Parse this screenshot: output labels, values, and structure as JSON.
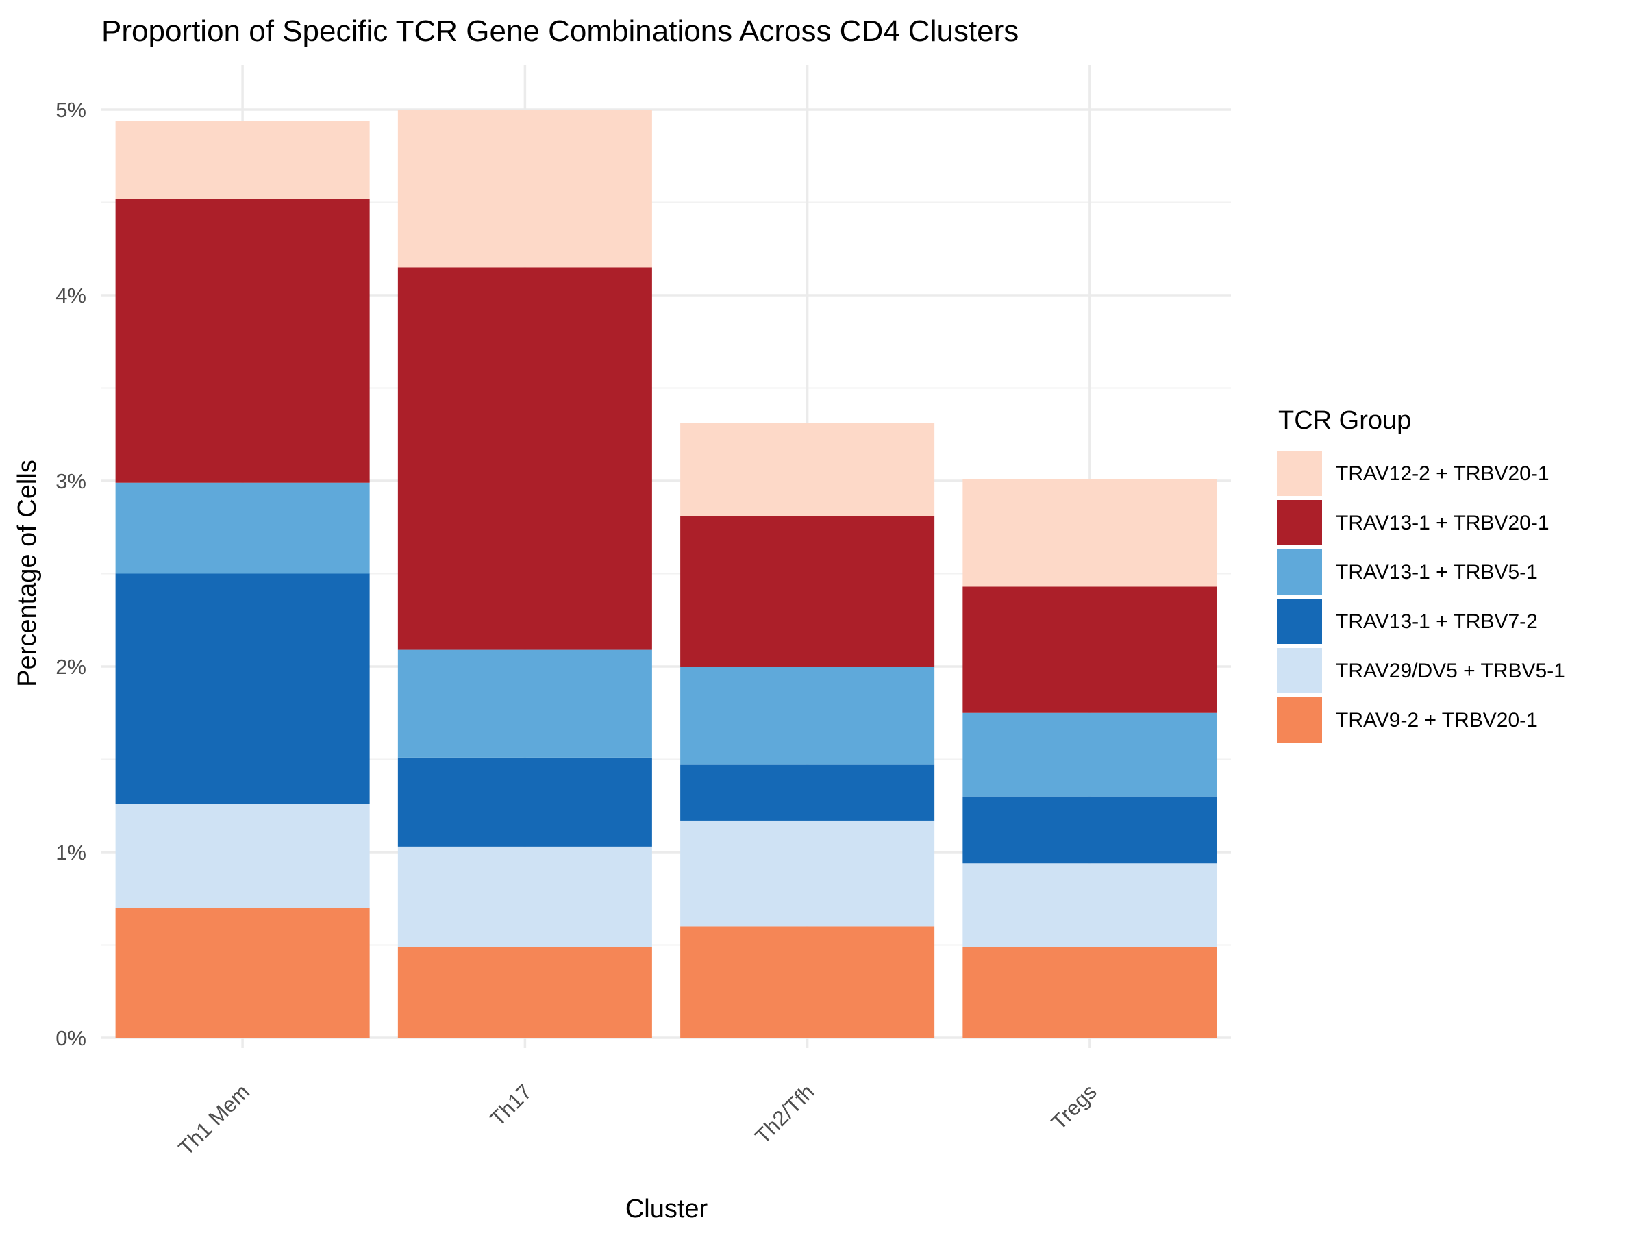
{
  "chart_data": {
    "type": "bar",
    "stacked": true,
    "title": "Proportion of Specific TCR Gene Combinations Across CD4 Clusters",
    "xlabel": "Cluster",
    "ylabel": "Percentage of Cells",
    "categories": [
      "Th1 Mem",
      "Th17",
      "Th2/Tfh",
      "Tregs"
    ],
    "ylim": [
      0,
      5
    ],
    "yticks": [
      0,
      1,
      2,
      3,
      4,
      5
    ],
    "ytick_labels": [
      "0%",
      "1%",
      "2%",
      "3%",
      "4%",
      "5%"
    ],
    "grid": true,
    "legend": {
      "title": "TCR Group",
      "position": "right"
    },
    "series": [
      {
        "name": "TRAV12-2 + TRBV20-1",
        "color": "#fdd9c8",
        "values": [
          0.42,
          0.85,
          0.5,
          0.58
        ]
      },
      {
        "name": "TRAV13-1 + TRBV20-1",
        "color": "#ac1f29",
        "values": [
          1.53,
          2.06,
          0.81,
          0.68
        ]
      },
      {
        "name": "TRAV13-1 + TRBV5-1",
        "color": "#5fa9da",
        "values": [
          0.49,
          0.58,
          0.53,
          0.45
        ]
      },
      {
        "name": "TRAV13-1 + TRBV7-2",
        "color": "#1569b6",
        "values": [
          1.24,
          0.48,
          0.3,
          0.36
        ]
      },
      {
        "name": "TRAV29/DV5 + TRBV5-1",
        "color": "#cfe2f4",
        "values": [
          0.56,
          0.54,
          0.57,
          0.45
        ]
      },
      {
        "name": "TRAV9-2 + TRBV20-1",
        "color": "#f58656",
        "values": [
          0.7,
          0.49,
          0.6,
          0.49
        ]
      }
    ]
  }
}
